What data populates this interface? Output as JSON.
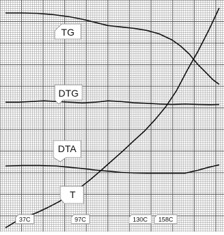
{
  "chart_data": {
    "type": "line",
    "title": "",
    "xlabel": "",
    "ylabel": "",
    "grid": true,
    "xlim": [
      0,
      100
    ],
    "ylim": [
      0,
      100
    ],
    "series": [
      {
        "name": "TG",
        "color": "#111111",
        "x": [
          0,
          8,
          15,
          22,
          30,
          36,
          42,
          48,
          54,
          60,
          66,
          72,
          78,
          82,
          86,
          90,
          94,
          97,
          100
        ],
        "y": [
          95.5,
          95.5,
          95.3,
          94.8,
          93.8,
          92.7,
          91.3,
          89.9,
          89.3,
          88.7,
          87.8,
          86.2,
          83.5,
          80.8,
          77.3,
          72.7,
          68.9,
          66.0,
          63.9
        ]
      },
      {
        "name": "DTG",
        "color": "#111111",
        "x": [
          0,
          6,
          12,
          18,
          24,
          30,
          36,
          42,
          48,
          54,
          60,
          66,
          72,
          78,
          84,
          90,
          96,
          100
        ],
        "y": [
          56.0,
          56.0,
          56.3,
          56.6,
          56.3,
          56.0,
          55.7,
          56.0,
          56.6,
          56.3,
          55.8,
          55.5,
          55.2,
          55.0,
          55.2,
          55.0,
          54.9,
          55.0
        ]
      },
      {
        "name": "DTA",
        "color": "#111111",
        "x": [
          0,
          8,
          16,
          24,
          30,
          36,
          42,
          48,
          54,
          60,
          66,
          72,
          78,
          84,
          90,
          95,
          100
        ],
        "y": [
          27.8,
          28.0,
          28.0,
          27.8,
          27.2,
          26.7,
          26.0,
          25.5,
          25.0,
          24.7,
          24.6,
          24.6,
          24.6,
          24.6,
          25.9,
          27.2,
          28.3
        ]
      },
      {
        "name": "T",
        "color": "#111111",
        "x": [
          0,
          5,
          10,
          15,
          20,
          25,
          30,
          35,
          40,
          45,
          50,
          55,
          60,
          65,
          70,
          75,
          80,
          85,
          90,
          95,
          100
        ],
        "y": [
          0.5,
          3.3,
          5.4,
          7.3,
          9.5,
          12.0,
          14.9,
          18.3,
          22.0,
          26.1,
          30.3,
          34.5,
          38.9,
          43.2,
          48.3,
          54.0,
          61.1,
          70.1,
          78.4,
          87.6,
          97.7
        ]
      }
    ],
    "labels": {
      "tg": "TG",
      "dtg": "DTG",
      "dta": "DTA",
      "t": "T"
    },
    "annotations": [
      {
        "text": "37C",
        "x": 9,
        "y": 2
      },
      {
        "text": "97C",
        "x": 35,
        "y": 2
      },
      {
        "text": "130C",
        "x": 63,
        "y": 2
      },
      {
        "text": "158C",
        "x": 75,
        "y": 2
      }
    ]
  }
}
